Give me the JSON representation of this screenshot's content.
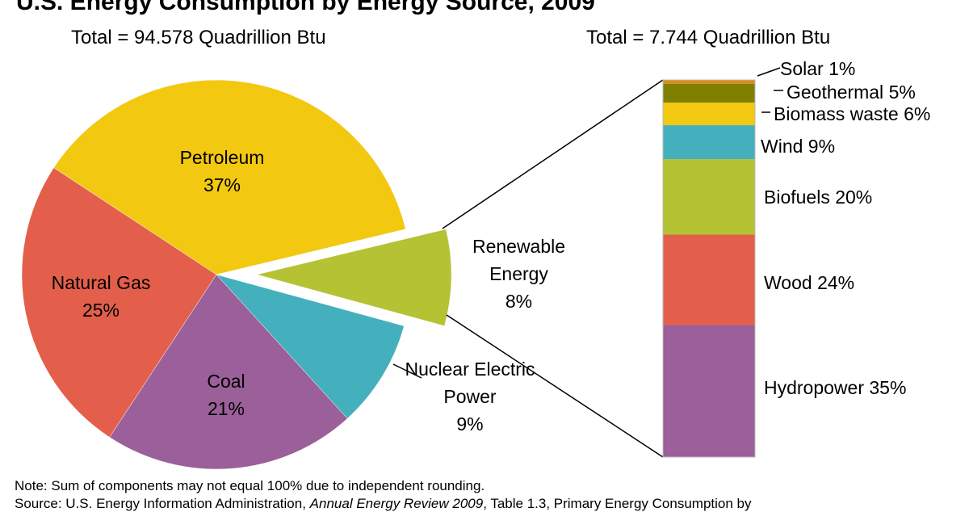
{
  "chart_data": [
    {
      "type": "pie",
      "title": "U.S. Energy Consumption by Energy Source, 2009",
      "subtitle": "Total = 94.578 Quadrillion Btu",
      "slices": [
        {
          "label": "Petroleum",
          "value": 37,
          "pct_label": "37%",
          "color": "#f2c811"
        },
        {
          "label": "Natural Gas",
          "value": 25,
          "pct_label": "25%",
          "color": "#e35f4b"
        },
        {
          "label": "Coal",
          "value": 21,
          "pct_label": "21%",
          "color": "#9b5f99"
        },
        {
          "label": "Nuclear Electric Power",
          "value": 9,
          "pct_label": "9%",
          "color": "#45b0bd"
        },
        {
          "label": "Renewable Energy",
          "value": 8,
          "pct_label": "8%",
          "color": "#b5c234",
          "exploded": true
        }
      ]
    },
    {
      "type": "bar",
      "stacked": true,
      "subtitle": "Total = 7.744 Quadrillion Btu",
      "segments": [
        {
          "label": "Hydropower",
          "value": 35,
          "pct_label": "35%",
          "color": "#9b5f99"
        },
        {
          "label": "Wood",
          "value": 24,
          "pct_label": "24%",
          "color": "#e35f4b"
        },
        {
          "label": "Biofuels",
          "value": 20,
          "pct_label": "20%",
          "color": "#b5c234"
        },
        {
          "label": "Wind",
          "value": 9,
          "pct_label": "9%",
          "color": "#45b0bd"
        },
        {
          "label": "Biomass waste",
          "value": 6,
          "pct_label": "6%",
          "color": "#f2c811"
        },
        {
          "label": "Geothermal",
          "value": 5,
          "pct_label": "5%",
          "color": "#7f8000"
        },
        {
          "label": "Solar",
          "value": 1,
          "pct_label": "1%",
          "color": "#d98c1a"
        }
      ]
    }
  ],
  "notes": {
    "note": "Note: Sum of components may not equal 100% due to independent rounding.",
    "source_prefix": "Source: U.S. Energy Information Administration, ",
    "source_italic": "Annual Energy Review 2009",
    "source_suffix": ", Table 1.3, Primary Energy Consumption by"
  }
}
